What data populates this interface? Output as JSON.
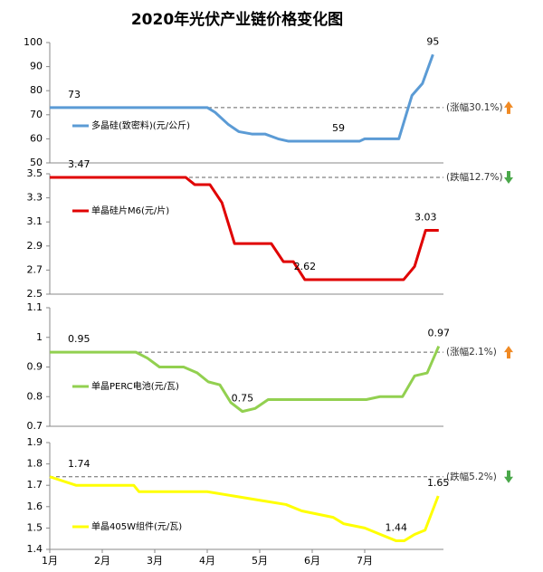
{
  "title": "2020年光伏产业链价格变化图",
  "chart_data": [
    {
      "type": "line",
      "xlim": [
        1,
        8.5
      ],
      "ylim": [
        50,
        100
      ],
      "yticks": [
        50,
        60,
        70,
        80,
        90,
        100
      ],
      "x": [
        1,
        4.0,
        4.15,
        4.4,
        4.6,
        4.85,
        5.1,
        5.35,
        5.55,
        6.0,
        6.5,
        6.9,
        7.0,
        7.65,
        7.9,
        8.1,
        8.3
      ],
      "series": [
        {
          "name": "多晶硅(致密料)(元/公斤)",
          "color": "#5b9bd5",
          "values": [
            73,
            73,
            71,
            66,
            63,
            62,
            62,
            60,
            59,
            59,
            59,
            59,
            60,
            60,
            78,
            83,
            95
          ],
          "value_labels": [
            "73",
            null,
            null,
            null,
            null,
            null,
            null,
            null,
            null,
            null,
            "59",
            null,
            null,
            null,
            null,
            null,
            "95"
          ]
        }
      ],
      "ref_line": {
        "value": 73,
        "label": "(涨幅30.1%)",
        "direction": "up",
        "arrow_color": "#f08a24"
      }
    },
    {
      "type": "line",
      "xlim": [
        1,
        8.5
      ],
      "ylim": [
        2.5,
        3.5
      ],
      "yticks": [
        2.5,
        2.7,
        2.9,
        3.1,
        3.3,
        3.5
      ],
      "x": [
        1,
        3.59,
        3.76,
        4.05,
        4.28,
        4.52,
        5.22,
        5.45,
        5.64,
        5.86,
        7.74,
        7.95,
        8.16,
        8.41
      ],
      "series": [
        {
          "name": "单晶硅片M6(元/片)",
          "color": "#e00000",
          "values": [
            3.47,
            3.47,
            3.41,
            3.41,
            3.26,
            2.92,
            2.92,
            2.77,
            2.77,
            2.62,
            2.62,
            2.73,
            3.03,
            3.03
          ],
          "value_labels": [
            "3.47",
            null,
            null,
            null,
            null,
            null,
            null,
            null,
            null,
            "2.62",
            null,
            null,
            "3.03",
            null
          ]
        }
      ],
      "ref_line": {
        "value": 3.47,
        "label": "(跌幅12.7%)",
        "direction": "down",
        "arrow_color": "#4aa84a"
      }
    },
    {
      "type": "line",
      "xlim": [
        1,
        8.5
      ],
      "ylim": [
        0.7,
        1.1
      ],
      "yticks": [
        0.7,
        0.8,
        0.9,
        1,
        1.1
      ],
      "x": [
        1,
        2.64,
        2.86,
        3.09,
        3.55,
        3.81,
        4.02,
        4.24,
        4.45,
        4.67,
        4.91,
        5.16,
        7.03,
        7.29,
        7.72,
        7.95,
        8.19,
        8.41
      ],
      "series": [
        {
          "name": "单晶PERC电池(元/瓦)",
          "color": "#92d050",
          "values": [
            0.95,
            0.95,
            0.93,
            0.9,
            0.9,
            0.88,
            0.85,
            0.84,
            0.78,
            0.75,
            0.76,
            0.79,
            0.79,
            0.8,
            0.8,
            0.87,
            0.88,
            0.97
          ],
          "value_labels": [
            "0.95",
            null,
            null,
            null,
            null,
            null,
            null,
            null,
            null,
            "0.75",
            null,
            null,
            null,
            null,
            null,
            null,
            null,
            "0.97"
          ]
        }
      ],
      "ref_line": {
        "value": 0.95,
        "label": "(涨幅2.1%)",
        "direction": "up",
        "arrow_color": "#f08a24"
      }
    },
    {
      "type": "line",
      "xlim": [
        1,
        8.5
      ],
      "ylim": [
        1.4,
        1.9
      ],
      "yticks": [
        1.4,
        1.5,
        1.6,
        1.7,
        1.8,
        1.9
      ],
      "xticks": [
        {
          "value": 1,
          "label": "1月"
        },
        {
          "value": 2,
          "label": "2月"
        },
        {
          "value": 3,
          "label": "3月"
        },
        {
          "value": 4,
          "label": "4月"
        },
        {
          "value": 5,
          "label": "5月"
        },
        {
          "value": 6,
          "label": "6月"
        },
        {
          "value": 7,
          "label": "7月"
        }
      ],
      "x": [
        1,
        1.5,
        2.6,
        2.7,
        4.0,
        4.5,
        5.0,
        5.5,
        5.8,
        6.2,
        6.4,
        6.6,
        7.0,
        7.3,
        7.6,
        7.75,
        7.95,
        8.15,
        8.4
      ],
      "series": [
        {
          "name": "单晶405W组件(元/瓦)",
          "color": "#ffff00",
          "values": [
            1.74,
            1.7,
            1.7,
            1.67,
            1.67,
            1.65,
            1.63,
            1.61,
            1.58,
            1.56,
            1.55,
            1.52,
            1.5,
            1.47,
            1.44,
            1.44,
            1.47,
            1.49,
            1.65
          ],
          "value_labels": [
            "1.74",
            null,
            null,
            null,
            null,
            null,
            null,
            null,
            null,
            null,
            null,
            null,
            null,
            null,
            "1.44",
            null,
            null,
            null,
            "1.65"
          ]
        }
      ],
      "ref_line": {
        "value": 1.74,
        "label": "(跌幅5.2%)",
        "direction": "down",
        "arrow_color": "#4aa84a"
      }
    }
  ]
}
